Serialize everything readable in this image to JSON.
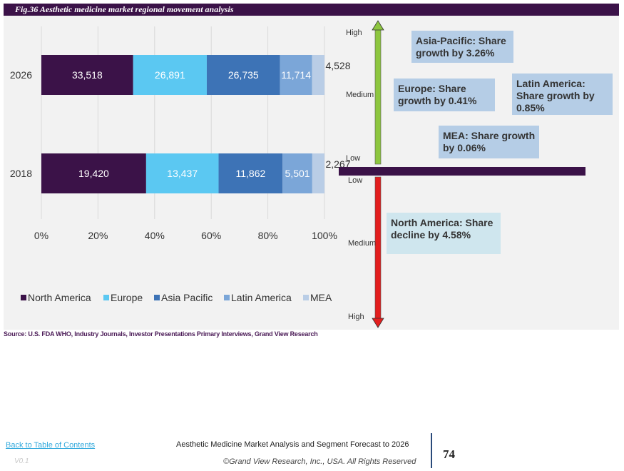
{
  "figure": {
    "title": "Fig.36  Aesthetic medicine market regional movement analysis"
  },
  "colors": {
    "header_bg": "#3b1248",
    "series": [
      "#3b1248",
      "#5bc8f2",
      "#3d73b6",
      "#7ba6d8",
      "#b9cde6"
    ],
    "arrow_up": "#8dc63f",
    "arrow_down": "#e31e1e",
    "box_bg": [
      "#b5cde6",
      "#b5cde6",
      "#b5cde6",
      "#b5cde6",
      "#cfe6ee"
    ]
  },
  "chart_data": [
    {
      "type": "bar",
      "orientation": "horizontal",
      "stacked": "percent",
      "categories": [
        "2026",
        "2018"
      ],
      "series": [
        {
          "name": "North America",
          "values": [
            33518,
            19420
          ]
        },
        {
          "name": "Europe",
          "values": [
            26891,
            13437
          ]
        },
        {
          "name": "Asia Pacific",
          "values": [
            26735,
            11862
          ]
        },
        {
          "name": "Latin America",
          "values": [
            11714,
            5501
          ]
        },
        {
          "name": "MEA",
          "values": [
            4528,
            2267
          ]
        }
      ],
      "value_labels": {
        "2026": [
          "33,518",
          "26,891",
          "26,735",
          "11,714",
          "4,528"
        ],
        "2018": [
          "19,420",
          "13,437",
          "11,862",
          "5,501",
          "2,267"
        ]
      },
      "x_ticks": [
        "0%",
        "20%",
        "40%",
        "60%",
        "80%",
        "100%"
      ],
      "xlim": [
        0,
        100
      ],
      "grid": true,
      "legend_position": "bottom"
    },
    {
      "type": "diagram",
      "scale_up": [
        "High",
        "Medium",
        "Low"
      ],
      "scale_down": [
        "Low",
        "Medium",
        "High"
      ],
      "growth": [
        {
          "label": "Asia-Pacific: Share growth by 3.26%",
          "lines": [
            "Asia-Pacific: Share",
            "growth by 3.26%"
          ],
          "direction": "growth",
          "value": 3.26
        },
        {
          "label": "Europe: Share growth by 0.41%",
          "lines": [
            "Europe: Share",
            "growth by 0.41%"
          ],
          "direction": "growth",
          "value": 0.41
        },
        {
          "label": "Latin America: Share growth by 0.85%",
          "lines": [
            "Latin America:",
            "Share growth by",
            "0.85%"
          ],
          "direction": "growth",
          "value": 0.85
        },
        {
          "label": "MEA: Share growth by 0.06%",
          "lines": [
            "MEA: Share growth",
            "by 0.06%"
          ],
          "direction": "growth",
          "value": 0.06
        },
        {
          "label": "North America: Share decline by 4.58%",
          "lines": [
            "North America: Share",
            "decline by 4.58%"
          ],
          "direction": "decline",
          "value": 4.58
        }
      ]
    }
  ],
  "source": "Source: U.S. FDA WHO, Industry Journals, Investor Presentations Primary Interviews, Grand View Research",
  "footer": {
    "link": "Back to Table of Contents",
    "version": "V0.1",
    "report": "Aesthetic Medicine Market Analysis and Segment Forecast to 2026",
    "copyright": "©Grand View Research, Inc., USA. All Rights Reserved",
    "page_number": "74"
  }
}
